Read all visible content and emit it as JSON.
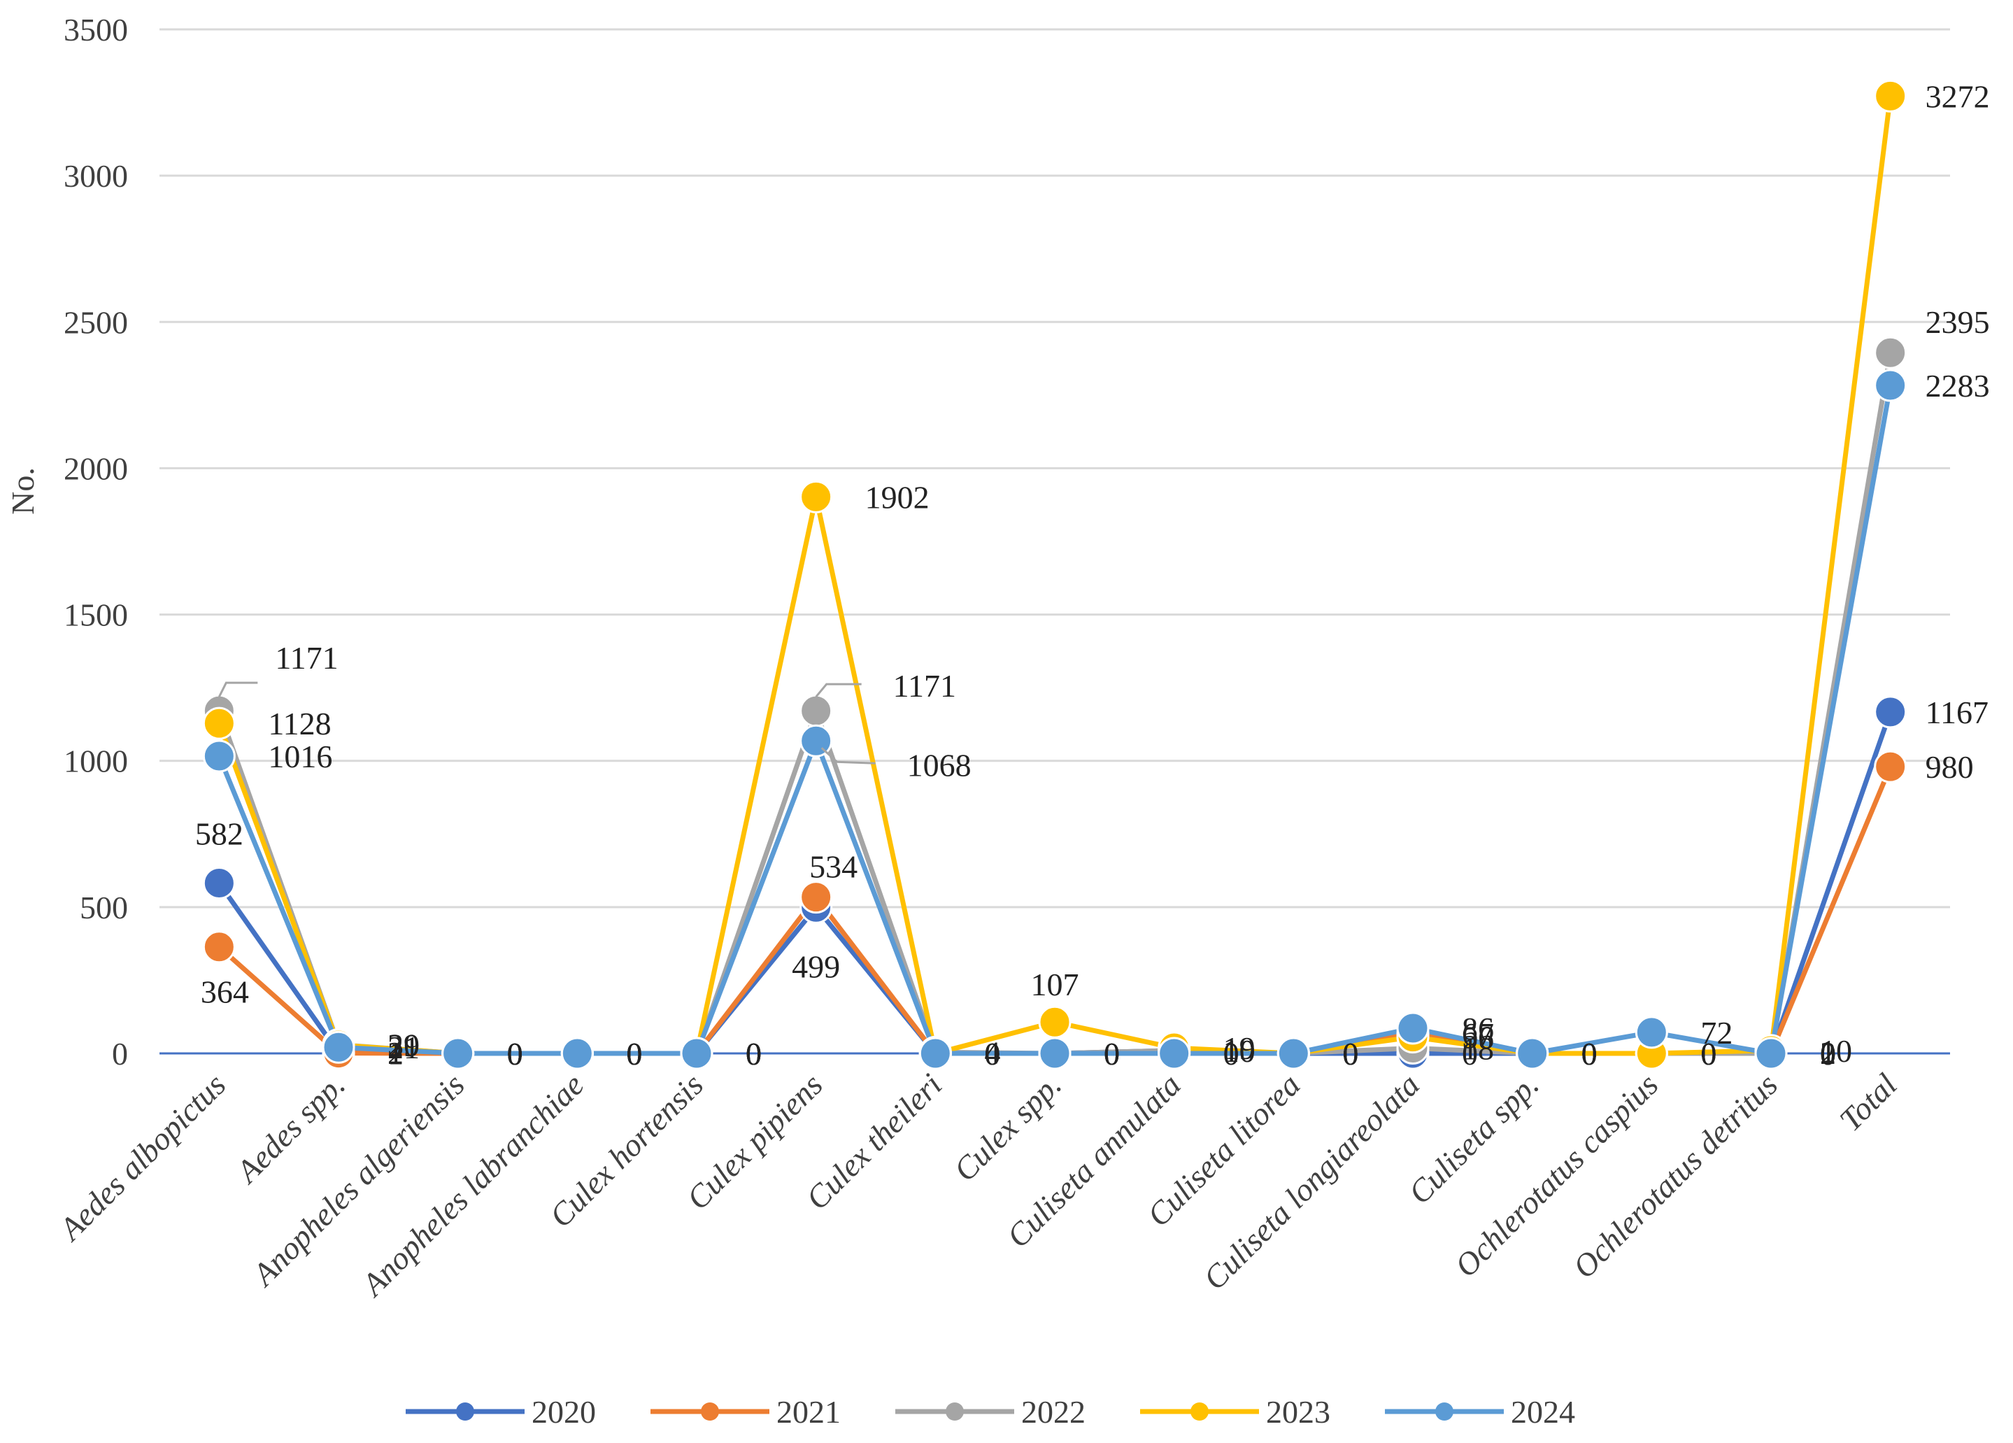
{
  "chart_data": {
    "type": "line",
    "title": "",
    "xlabel": "",
    "ylabel": "No.",
    "ylim": [
      0,
      3500
    ],
    "yticks": [
      0,
      500,
      1000,
      1500,
      2000,
      2500,
      3000,
      3500
    ],
    "grid": true,
    "legend": "bottom",
    "categories": [
      "Aedes albopictus",
      "Aedes spp.",
      "Anopheles algeriensis",
      "Anopheles labranchiae",
      "Culex hortensis",
      "Culex pipiens",
      "Culex theileri",
      "Culex spp.",
      "Culiseta annulata",
      "Culiseta litorea",
      "Culiseta longiareolata",
      "Culiseta spp.",
      "Ochlerotatus caspius",
      "Ochlerotatus detritus",
      "Total"
    ],
    "series": [
      {
        "name": "2020",
        "color": "#4472c4",
        "values": [
          582,
          2,
          0,
          0,
          0,
          499,
          0,
          0,
          10,
          0,
          0,
          0,
          0,
          0,
          1167
        ],
        "labels": [
          "582",
          "2",
          "0",
          "0",
          "0",
          "499",
          "0",
          "0",
          "10",
          "0",
          "0",
          "0",
          "0",
          "0",
          "1167"
        ]
      },
      {
        "name": "2021",
        "color": "#ed7d31",
        "values": [
          364,
          1,
          0,
          0,
          0,
          534,
          0,
          0,
          0,
          0,
          67,
          0,
          0,
          2,
          980
        ],
        "labels": [
          "364",
          "1",
          "0",
          "0",
          "0",
          "534",
          "0",
          "0",
          "0",
          "0",
          "67",
          "0",
          "0",
          "2",
          "980"
        ]
      },
      {
        "name": "2022",
        "color": "#a5a5a5",
        "values": [
          1171,
          30,
          0,
          0,
          0,
          1171,
          4,
          0,
          10,
          0,
          18,
          0,
          0,
          0,
          2395
        ],
        "labels": [
          "1171",
          "30",
          "0",
          "0",
          "0",
          "1171",
          "4",
          "0",
          "10",
          "0",
          "18",
          "0",
          "0",
          "0",
          "2395"
        ]
      },
      {
        "name": "2023",
        "color": "#ffc000",
        "values": [
          1128,
          29,
          0,
          0,
          0,
          1902,
          0,
          107,
          19,
          0,
          56,
          0,
          0,
          10,
          3272
        ],
        "labels": [
          "1128",
          "29",
          "0",
          "0",
          "0",
          "1902",
          "0",
          "107",
          "19",
          "0",
          "56",
          "0",
          "0",
          "10",
          "3272"
        ]
      },
      {
        "name": "2024",
        "color": "#5b9bd5",
        "values": [
          1016,
          21,
          0,
          0,
          0,
          1068,
          0,
          0,
          0,
          0,
          86,
          0,
          72,
          0,
          2283
        ],
        "labels": [
          "1016",
          "21",
          "0",
          "0",
          "0",
          "1068",
          "0",
          "0",
          "0",
          "0",
          "86",
          "0",
          "72",
          "0",
          "2283"
        ]
      }
    ]
  }
}
